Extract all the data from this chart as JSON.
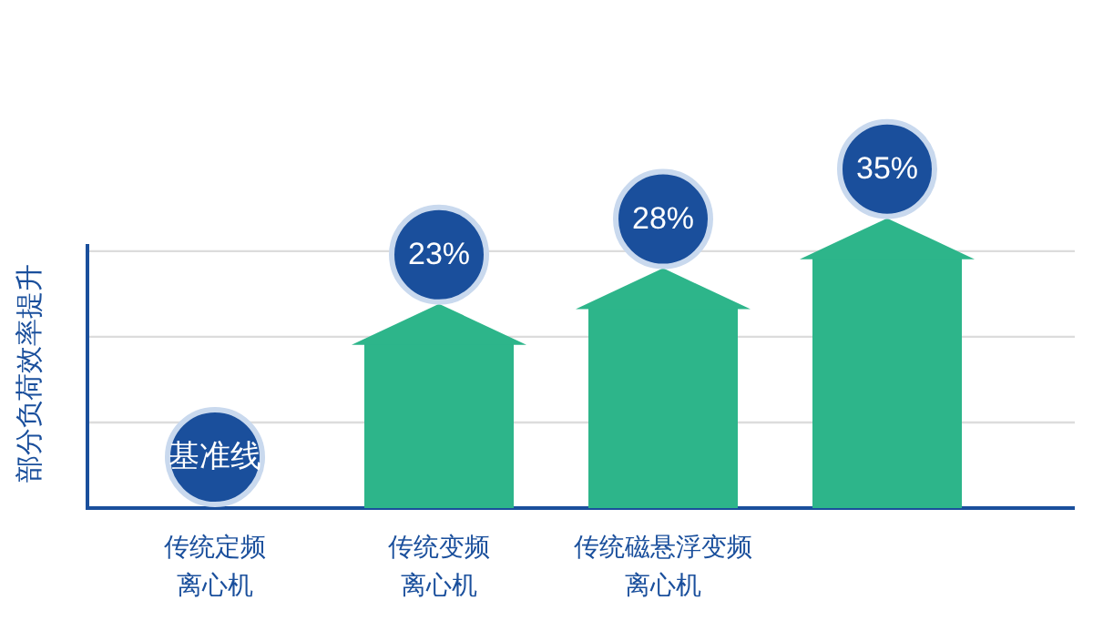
{
  "chart_data": {
    "type": "bar",
    "ylabel": "部分负荷效率提升",
    "categories": [
      "传统定频离心机",
      "传统变频离心机",
      "传统磁悬浮变频离心机",
      null
    ],
    "values": [
      0,
      23,
      28,
      35
    ],
    "value_labels": [
      "基准线",
      "23%",
      "28%",
      "35%"
    ],
    "color": "#2db58a",
    "ylim": [
      0,
      37
    ],
    "yticks": [
      {
        "value": 12,
        "label": null
      },
      {
        "value": 24,
        "label": null
      },
      {
        "value": 36,
        "label": null
      }
    ],
    "grid": "y"
  }
}
